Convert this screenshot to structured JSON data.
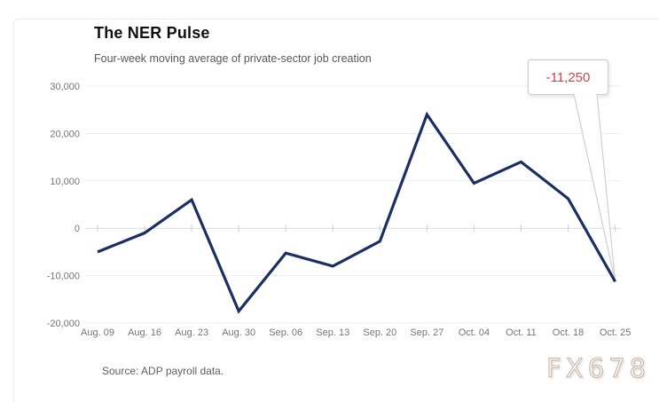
{
  "header": {
    "title": "The NER Pulse",
    "subtitle": "Four-week moving average of private-sector job creation"
  },
  "footer": {
    "source": "Source: ADP payroll data.",
    "watermark": "FX678"
  },
  "chart_data": {
    "type": "line",
    "title": "The NER Pulse",
    "subtitle": "Four-week moving average of private-sector job creation",
    "categories": [
      "Aug. 09",
      "Aug. 16",
      "Aug. 23",
      "Aug. 30",
      "Sep. 06",
      "Sep. 13",
      "Sep. 20",
      "Sep. 27",
      "Oct. 04",
      "Oct. 11",
      "Oct. 18",
      "Oct. 25"
    ],
    "values": [
      -5000,
      -1000,
      6000,
      -17500,
      -5250,
      -8000,
      -2750,
      24000,
      9500,
      14000,
      6250,
      -11250
    ],
    "xlabel": "",
    "ylabel": "",
    "ylim": [
      -20000,
      30000
    ],
    "y_ticks": [
      30000,
      20000,
      10000,
      0,
      -10000,
      -20000
    ],
    "y_tick_labels": [
      "30,000",
      "20,000",
      "10,000",
      "0",
      "-10,000",
      "-20,000"
    ],
    "grid": "horizontal",
    "legend": "none",
    "line_color": "#1c2f63",
    "grid_color": "#ededed",
    "zero_line_color": "#dcdcdc",
    "axis_label_color": "#757575",
    "annotation": {
      "label": "-11,250",
      "category": "Oct. 25",
      "value": -11250,
      "color": "#c9474f",
      "box_border_color": "#cfcfcf"
    }
  }
}
